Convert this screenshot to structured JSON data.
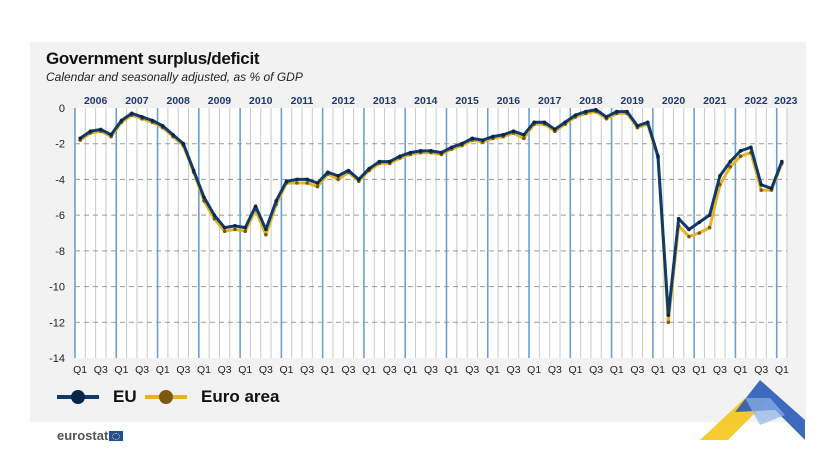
{
  "chart_data": {
    "type": "line",
    "title": "Government surplus/deficit",
    "subtitle": "Calendar and seasonally adjusted, as % of GDP",
    "years": [
      "2006",
      "2007",
      "2008",
      "2009",
      "2010",
      "2011",
      "2012",
      "2013",
      "2014",
      "2015",
      "2016",
      "2017",
      "2018",
      "2019",
      "2020",
      "2021",
      "2022",
      "2023"
    ],
    "quarter_labels": [
      "Q1",
      "Q3"
    ],
    "ylim": [
      -14,
      0
    ],
    "yticks": [
      "0",
      "-2",
      "-4",
      "-6",
      "-8",
      "-10",
      "-12",
      "-14"
    ],
    "ytick_values": [
      0,
      -2,
      -4,
      -6,
      -8,
      -10,
      -12,
      -14
    ],
    "x_start": "2006Q1",
    "x_end": "2023Q1",
    "series": [
      {
        "name": "EU",
        "color": "#0e3a6e",
        "marker": "#0b2545",
        "values": [
          -1.7,
          -1.3,
          -1.2,
          -1.5,
          -0.7,
          -0.3,
          -0.5,
          -0.7,
          -1.0,
          -1.5,
          -2.0,
          -3.5,
          -5.0,
          -6.0,
          -6.7,
          -6.6,
          -6.7,
          -5.5,
          -6.8,
          -5.2,
          -4.1,
          -4.0,
          -4.0,
          -4.2,
          -3.6,
          -3.8,
          -3.5,
          -4.0,
          -3.4,
          -3.0,
          -3.0,
          -2.7,
          -2.5,
          -2.4,
          -2.4,
          -2.5,
          -2.2,
          -2.0,
          -1.7,
          -1.8,
          -1.6,
          -1.5,
          -1.3,
          -1.5,
          -0.8,
          -0.8,
          -1.2,
          -0.8,
          -0.4,
          -0.2,
          -0.1,
          -0.5,
          -0.2,
          -0.2,
          -1.0,
          -0.8,
          -2.7,
          -11.6,
          -6.2,
          -6.8,
          -6.4,
          -6.0,
          -3.8,
          -3.0,
          -2.4,
          -2.2,
          -4.3,
          -4.5,
          -3.0
        ]
      },
      {
        "name": "Euro area",
        "color": "#e6b41e",
        "marker": "#7a5a10",
        "values": [
          -1.8,
          -1.4,
          -1.3,
          -1.6,
          -0.8,
          -0.4,
          -0.6,
          -0.8,
          -1.1,
          -1.6,
          -2.1,
          -3.6,
          -5.2,
          -6.2,
          -6.9,
          -6.8,
          -6.9,
          -5.7,
          -7.1,
          -5.4,
          -4.2,
          -4.2,
          -4.2,
          -4.4,
          -3.7,
          -4.0,
          -3.6,
          -4.1,
          -3.5,
          -3.1,
          -3.1,
          -2.8,
          -2.6,
          -2.5,
          -2.5,
          -2.6,
          -2.3,
          -2.1,
          -1.8,
          -1.9,
          -1.7,
          -1.6,
          -1.4,
          -1.7,
          -0.9,
          -0.9,
          -1.3,
          -0.9,
          -0.5,
          -0.3,
          -0.2,
          -0.6,
          -0.3,
          -0.3,
          -1.1,
          -0.9,
          -2.8,
          -12.0,
          -6.6,
          -7.2,
          -7.0,
          -6.7,
          -4.3,
          -3.3,
          -2.7,
          -2.5,
          -4.6,
          -4.6,
          -3.1
        ]
      }
    ],
    "legend": "bottom-left",
    "grid": true
  },
  "footer": {
    "brand": "eurostat"
  }
}
